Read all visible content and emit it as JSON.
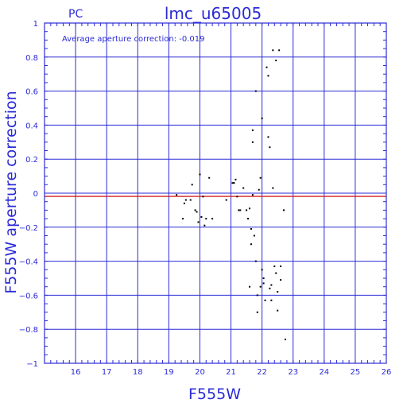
{
  "chart_data": {
    "type": "scatter",
    "corner_label": "PC",
    "title": "lmc_u65005",
    "xlabel": "F555W",
    "ylabel": "F555W aperture correction",
    "annotation": "Average aperture correction: -0.019",
    "xlim": [
      15,
      26
    ],
    "ylim": [
      -1,
      1
    ],
    "x_ticks": [
      16,
      17,
      18,
      19,
      20,
      21,
      22,
      23,
      24,
      25,
      26
    ],
    "y_ticks": [
      -1,
      -0.8,
      -0.6,
      -0.4,
      -0.2,
      0,
      0.2,
      0.4,
      0.6,
      0.8,
      1
    ],
    "x_tick_labels": [
      "16",
      "17",
      "18",
      "19",
      "20",
      "21",
      "22",
      "23",
      "24",
      "25",
      "26"
    ],
    "y_tick_labels": [
      "−1",
      "−0.8",
      "−0.6",
      "−0.4",
      "−0.2",
      "0",
      "0.2",
      "0.4",
      "0.6",
      "0.8",
      "1"
    ],
    "grid": true,
    "reference_line": {
      "y": -0.019,
      "color": "#d62020"
    },
    "colors": {
      "axes": "#2b2bd6",
      "grid": "#2b2bd6",
      "points": "#000000"
    },
    "points": [
      {
        "x": 19.25,
        "y": -0.01
      },
      {
        "x": 19.45,
        "y": -0.15
      },
      {
        "x": 19.5,
        "y": -0.06
      },
      {
        "x": 19.55,
        "y": -0.04
      },
      {
        "x": 19.7,
        "y": -0.04
      },
      {
        "x": 19.75,
        "y": 0.05
      },
      {
        "x": 19.85,
        "y": -0.1
      },
      {
        "x": 19.9,
        "y": -0.11
      },
      {
        "x": 19.95,
        "y": -0.17
      },
      {
        "x": 20.0,
        "y": 0.11
      },
      {
        "x": 20.05,
        "y": -0.14
      },
      {
        "x": 20.1,
        "y": -0.02
      },
      {
        "x": 20.15,
        "y": -0.19
      },
      {
        "x": 20.2,
        "y": -0.15
      },
      {
        "x": 20.3,
        "y": 0.09
      },
      {
        "x": 20.4,
        "y": -0.15
      },
      {
        "x": 20.85,
        "y": -0.04
      },
      {
        "x": 21.05,
        "y": 0.06
      },
      {
        "x": 21.1,
        "y": 0.06
      },
      {
        "x": 21.15,
        "y": 0.08
      },
      {
        "x": 21.2,
        "y": -0.02
      },
      {
        "x": 21.25,
        "y": -0.1
      },
      {
        "x": 21.3,
        "y": -0.1
      },
      {
        "x": 21.4,
        "y": 0.03
      },
      {
        "x": 21.5,
        "y": -0.1
      },
      {
        "x": 21.55,
        "y": -0.15
      },
      {
        "x": 21.6,
        "y": -0.09
      },
      {
        "x": 21.6,
        "y": -0.55
      },
      {
        "x": 21.65,
        "y": -0.21
      },
      {
        "x": 21.65,
        "y": -0.3
      },
      {
        "x": 21.7,
        "y": 0.37
      },
      {
        "x": 21.7,
        "y": 0.3
      },
      {
        "x": 21.7,
        "y": -0.01
      },
      {
        "x": 21.75,
        "y": -0.25
      },
      {
        "x": 21.8,
        "y": 0.6
      },
      {
        "x": 21.8,
        "y": -0.4
      },
      {
        "x": 21.85,
        "y": -0.7
      },
      {
        "x": 21.85,
        "y": -0.6
      },
      {
        "x": 21.9,
        "y": 0.02
      },
      {
        "x": 21.95,
        "y": 0.09
      },
      {
        "x": 21.95,
        "y": -0.55
      },
      {
        "x": 22.0,
        "y": 0.44
      },
      {
        "x": 22.0,
        "y": -0.45
      },
      {
        "x": 22.05,
        "y": -0.5
      },
      {
        "x": 22.05,
        "y": -0.53
      },
      {
        "x": 22.1,
        "y": -0.63
      },
      {
        "x": 22.15,
        "y": 0.74
      },
      {
        "x": 22.2,
        "y": 0.69
      },
      {
        "x": 22.2,
        "y": 0.33
      },
      {
        "x": 22.25,
        "y": 0.27
      },
      {
        "x": 22.25,
        "y": -0.56
      },
      {
        "x": 22.3,
        "y": -0.54
      },
      {
        "x": 22.3,
        "y": -0.63
      },
      {
        "x": 22.35,
        "y": 0.84
      },
      {
        "x": 22.35,
        "y": 0.03
      },
      {
        "x": 22.4,
        "y": -0.43
      },
      {
        "x": 22.45,
        "y": 0.78
      },
      {
        "x": 22.45,
        "y": -0.47
      },
      {
        "x": 22.5,
        "y": -0.58
      },
      {
        "x": 22.5,
        "y": -0.69
      },
      {
        "x": 22.55,
        "y": 0.84
      },
      {
        "x": 22.6,
        "y": -0.43
      },
      {
        "x": 22.6,
        "y": -0.51
      },
      {
        "x": 22.7,
        "y": -0.1
      },
      {
        "x": 22.75,
        "y": -0.86
      }
    ]
  }
}
